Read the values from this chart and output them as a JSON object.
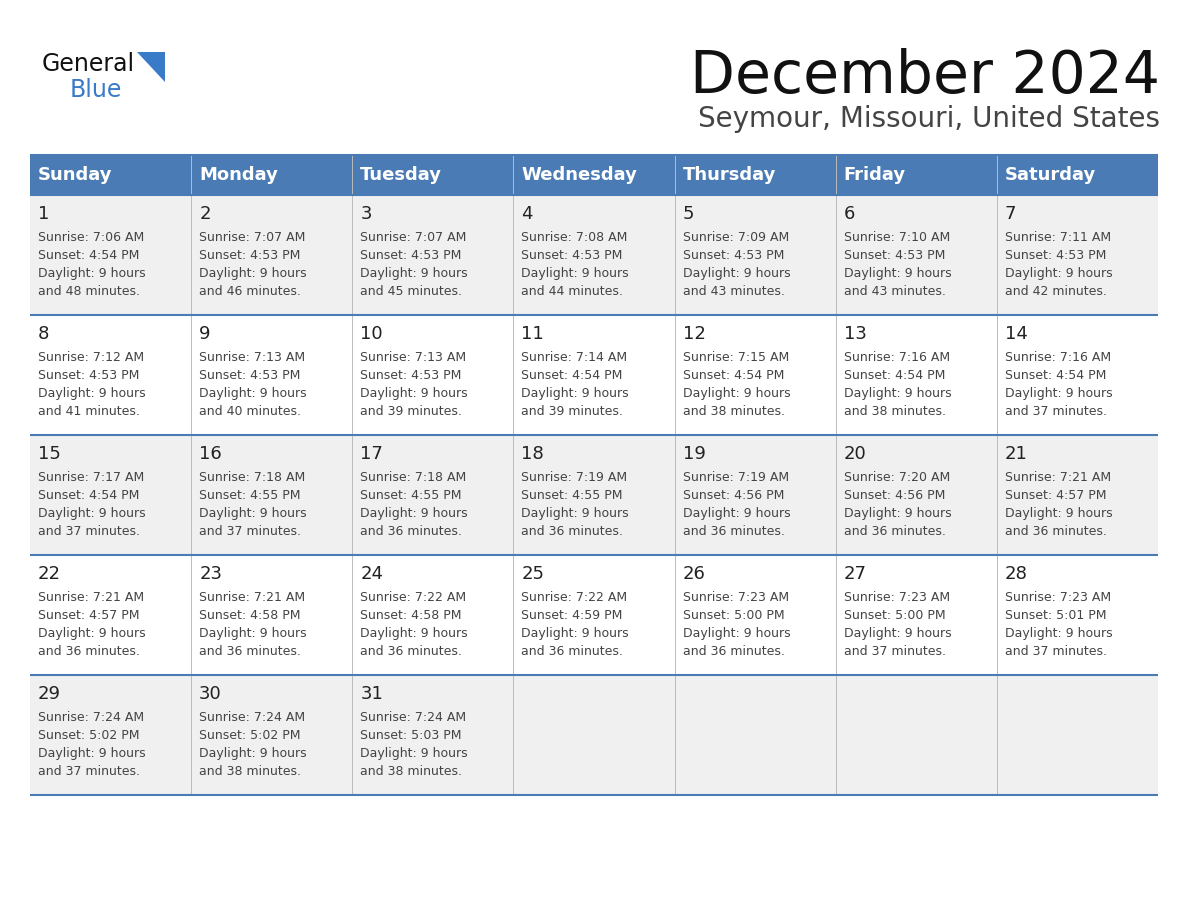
{
  "title": "December 2024",
  "subtitle": "Seymour, Missouri, United States",
  "days_of_week": [
    "Sunday",
    "Monday",
    "Tuesday",
    "Wednesday",
    "Thursday",
    "Friday",
    "Saturday"
  ],
  "header_bg": "#4a7bb5",
  "header_text": "#ffffff",
  "row_bg_odd": "#f0f0f0",
  "row_bg_even": "#ffffff",
  "day_num_color": "#222222",
  "cell_text_color": "#444444",
  "grid_color": "#4a7bb5",
  "title_color": "#111111",
  "subtitle_color": "#444444",
  "logo_general_color": "#111111",
  "logo_blue_color": "#3a7bc8",
  "calendar_data": [
    [
      {
        "day": "1",
        "sunrise": "7:06 AM",
        "sunset": "4:54 PM",
        "daylight_h": "9 hours",
        "daylight_m": "and 48 minutes."
      },
      {
        "day": "2",
        "sunrise": "7:07 AM",
        "sunset": "4:53 PM",
        "daylight_h": "9 hours",
        "daylight_m": "and 46 minutes."
      },
      {
        "day": "3",
        "sunrise": "7:07 AM",
        "sunset": "4:53 PM",
        "daylight_h": "9 hours",
        "daylight_m": "and 45 minutes."
      },
      {
        "day": "4",
        "sunrise": "7:08 AM",
        "sunset": "4:53 PM",
        "daylight_h": "9 hours",
        "daylight_m": "and 44 minutes."
      },
      {
        "day": "5",
        "sunrise": "7:09 AM",
        "sunset": "4:53 PM",
        "daylight_h": "9 hours",
        "daylight_m": "and 43 minutes."
      },
      {
        "day": "6",
        "sunrise": "7:10 AM",
        "sunset": "4:53 PM",
        "daylight_h": "9 hours",
        "daylight_m": "and 43 minutes."
      },
      {
        "day": "7",
        "sunrise": "7:11 AM",
        "sunset": "4:53 PM",
        "daylight_h": "9 hours",
        "daylight_m": "and 42 minutes."
      }
    ],
    [
      {
        "day": "8",
        "sunrise": "7:12 AM",
        "sunset": "4:53 PM",
        "daylight_h": "9 hours",
        "daylight_m": "and 41 minutes."
      },
      {
        "day": "9",
        "sunrise": "7:13 AM",
        "sunset": "4:53 PM",
        "daylight_h": "9 hours",
        "daylight_m": "and 40 minutes."
      },
      {
        "day": "10",
        "sunrise": "7:13 AM",
        "sunset": "4:53 PM",
        "daylight_h": "9 hours",
        "daylight_m": "and 39 minutes."
      },
      {
        "day": "11",
        "sunrise": "7:14 AM",
        "sunset": "4:54 PM",
        "daylight_h": "9 hours",
        "daylight_m": "and 39 minutes."
      },
      {
        "day": "12",
        "sunrise": "7:15 AM",
        "sunset": "4:54 PM",
        "daylight_h": "9 hours",
        "daylight_m": "and 38 minutes."
      },
      {
        "day": "13",
        "sunrise": "7:16 AM",
        "sunset": "4:54 PM",
        "daylight_h": "9 hours",
        "daylight_m": "and 38 minutes."
      },
      {
        "day": "14",
        "sunrise": "7:16 AM",
        "sunset": "4:54 PM",
        "daylight_h": "9 hours",
        "daylight_m": "and 37 minutes."
      }
    ],
    [
      {
        "day": "15",
        "sunrise": "7:17 AM",
        "sunset": "4:54 PM",
        "daylight_h": "9 hours",
        "daylight_m": "and 37 minutes."
      },
      {
        "day": "16",
        "sunrise": "7:18 AM",
        "sunset": "4:55 PM",
        "daylight_h": "9 hours",
        "daylight_m": "and 37 minutes."
      },
      {
        "day": "17",
        "sunrise": "7:18 AM",
        "sunset": "4:55 PM",
        "daylight_h": "9 hours",
        "daylight_m": "and 36 minutes."
      },
      {
        "day": "18",
        "sunrise": "7:19 AM",
        "sunset": "4:55 PM",
        "daylight_h": "9 hours",
        "daylight_m": "and 36 minutes."
      },
      {
        "day": "19",
        "sunrise": "7:19 AM",
        "sunset": "4:56 PM",
        "daylight_h": "9 hours",
        "daylight_m": "and 36 minutes."
      },
      {
        "day": "20",
        "sunrise": "7:20 AM",
        "sunset": "4:56 PM",
        "daylight_h": "9 hours",
        "daylight_m": "and 36 minutes."
      },
      {
        "day": "21",
        "sunrise": "7:21 AM",
        "sunset": "4:57 PM",
        "daylight_h": "9 hours",
        "daylight_m": "and 36 minutes."
      }
    ],
    [
      {
        "day": "22",
        "sunrise": "7:21 AM",
        "sunset": "4:57 PM",
        "daylight_h": "9 hours",
        "daylight_m": "and 36 minutes."
      },
      {
        "day": "23",
        "sunrise": "7:21 AM",
        "sunset": "4:58 PM",
        "daylight_h": "9 hours",
        "daylight_m": "and 36 minutes."
      },
      {
        "day": "24",
        "sunrise": "7:22 AM",
        "sunset": "4:58 PM",
        "daylight_h": "9 hours",
        "daylight_m": "and 36 minutes."
      },
      {
        "day": "25",
        "sunrise": "7:22 AM",
        "sunset": "4:59 PM",
        "daylight_h": "9 hours",
        "daylight_m": "and 36 minutes."
      },
      {
        "day": "26",
        "sunrise": "7:23 AM",
        "sunset": "5:00 PM",
        "daylight_h": "9 hours",
        "daylight_m": "and 36 minutes."
      },
      {
        "day": "27",
        "sunrise": "7:23 AM",
        "sunset": "5:00 PM",
        "daylight_h": "9 hours",
        "daylight_m": "and 37 minutes."
      },
      {
        "day": "28",
        "sunrise": "7:23 AM",
        "sunset": "5:01 PM",
        "daylight_h": "9 hours",
        "daylight_m": "and 37 minutes."
      }
    ],
    [
      {
        "day": "29",
        "sunrise": "7:24 AM",
        "sunset": "5:02 PM",
        "daylight_h": "9 hours",
        "daylight_m": "and 37 minutes."
      },
      {
        "day": "30",
        "sunrise": "7:24 AM",
        "sunset": "5:02 PM",
        "daylight_h": "9 hours",
        "daylight_m": "and 38 minutes."
      },
      {
        "day": "31",
        "sunrise": "7:24 AM",
        "sunset": "5:03 PM",
        "daylight_h": "9 hours",
        "daylight_m": "and 38 minutes."
      },
      null,
      null,
      null,
      null
    ]
  ],
  "fig_width": 11.88,
  "fig_height": 9.18,
  "dpi": 100
}
